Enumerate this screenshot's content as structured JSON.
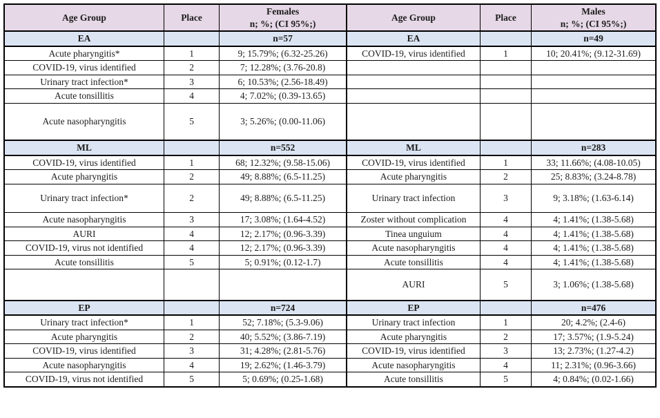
{
  "colors": {
    "header_bg": "#e6d8e6",
    "group_row_bg": "#dbe4f2",
    "border": "#000000",
    "text": "#1c1c1c"
  },
  "table": {
    "column_headers": [
      {
        "title": "Age Group"
      },
      {
        "title": "Place"
      },
      {
        "title": "Females",
        "subtitle": "n; %; (CI 95%;)"
      },
      {
        "title": "Age Group"
      },
      {
        "title": "Place"
      },
      {
        "title": "Males",
        "subtitle": "n; %; (CI 95%;)"
      }
    ],
    "rows": [
      {
        "type": "group",
        "cells": [
          "EA",
          "",
          "n=57",
          "EA",
          "",
          "n=49"
        ]
      },
      {
        "type": "data",
        "cells": [
          "Acute pharyngitis*",
          "1",
          "9; 15.79%; (6.32-25.26)",
          "COVID-19, virus identified",
          "1",
          "10; 20.41%; (9.12-31.69)"
        ]
      },
      {
        "type": "data",
        "cells": [
          "COVID-19, virus identified",
          "2",
          "7; 12.28%; (3.76-20.8)",
          "",
          "",
          ""
        ]
      },
      {
        "type": "data",
        "cells": [
          "Urinary tract infection*",
          "3",
          "6; 10.53%; (2.56-18.49)",
          "",
          "",
          ""
        ]
      },
      {
        "type": "data",
        "cells": [
          "Acute tonsillitis",
          "4",
          "4; 7.02%; (0.39-13.65)",
          "",
          "",
          ""
        ]
      },
      {
        "type": "data",
        "cells": [
          "Acute nasopharyngitis",
          "5",
          "3; 5.26%; (0.00-11.06)",
          "",
          "",
          ""
        ]
      },
      {
        "type": "group",
        "cells": [
          "ML",
          "",
          "n=552",
          "ML",
          "",
          "n=283"
        ]
      },
      {
        "type": "data",
        "cells": [
          "COVID-19, virus identified",
          "1",
          "68; 12.32%; (9.58-15.06)",
          "COVID-19, virus identified",
          "1",
          "33; 11.66%; (4.08-10.05)"
        ]
      },
      {
        "type": "data",
        "cells": [
          "Acute pharyngitis",
          "2",
          "49; 8.88%; (6.5-11.25)",
          "Acute pharyngitis",
          "2",
          "25; 8.83%; (3.24-8.78)"
        ]
      },
      {
        "type": "data",
        "cells": [
          "Urinary tract infection*",
          "2",
          "49; 8.88%; (6.5-11.25)",
          "Urinary tract infection",
          "3",
          "9; 3.18%; (1.63-6.14)"
        ]
      },
      {
        "type": "data",
        "cells": [
          "Acute nasopharyngitis",
          "3",
          "17; 3.08%; (1.64-4.52)",
          "Zoster without complication",
          "4",
          "4; 1.41%; (1.38-5.68)"
        ]
      },
      {
        "type": "data",
        "cells": [
          "AURI",
          "4",
          "12; 2.17%; (0.96-3.39)",
          "Tinea unguium",
          "4",
          "4; 1.41%; (1.38-5.68)"
        ]
      },
      {
        "type": "data",
        "cells": [
          "COVID-19, virus not identified",
          "4",
          "12; 2.17%; (0.96-3.39)",
          "Acute nasopharyngitis",
          "4",
          "4; 1.41%; (1.38-5.68)"
        ]
      },
      {
        "type": "data",
        "cells": [
          "Acute tonsillitis",
          "5",
          "5; 0.91%; (0.12-1.7)",
          "Acute tonsillitis",
          "4",
          "4; 1.41%; (1.38-5.68)"
        ]
      },
      {
        "type": "data",
        "cells": [
          "",
          "",
          "",
          "AURI",
          "5",
          "3; 1.06%; (1.38-5.68)"
        ]
      },
      {
        "type": "group",
        "cells": [
          "EP",
          "",
          "n=724",
          "EP",
          "",
          "n=476"
        ]
      },
      {
        "type": "data",
        "cells": [
          "Urinary tract infection*",
          "1",
          "52; 7.18%; (5.3-9.06)",
          "Urinary tract infection",
          "1",
          "20; 4.2%; (2.4-6)"
        ]
      },
      {
        "type": "data",
        "cells": [
          "Acute pharyngitis",
          "2",
          "40; 5.52%; (3.86-7.19)",
          "Acute pharyngitis",
          "2",
          "17; 3.57%; (1.9-5.24)"
        ]
      },
      {
        "type": "data",
        "cells": [
          "COVID-19, virus identified",
          "3",
          "31; 4.28%; (2.81-5.76)",
          "COVID-19, virus identified",
          "3",
          "13; 2.73%; (1.27-4.2)"
        ]
      },
      {
        "type": "data",
        "cells": [
          "Acute nasopharyngitis",
          "4",
          "19; 2.62%; (1.46-3.79)",
          "Acute nasopharyngitis",
          "4",
          "11; 2.31%; (0.96-3.66)"
        ]
      },
      {
        "type": "data",
        "cells": [
          "COVID-19, virus not identified",
          "5",
          "5; 0.69%; (0.25-1.68)",
          "Acute tonsillitis",
          "5",
          "4; 0.84%; (0.02-1.66)"
        ]
      }
    ]
  }
}
